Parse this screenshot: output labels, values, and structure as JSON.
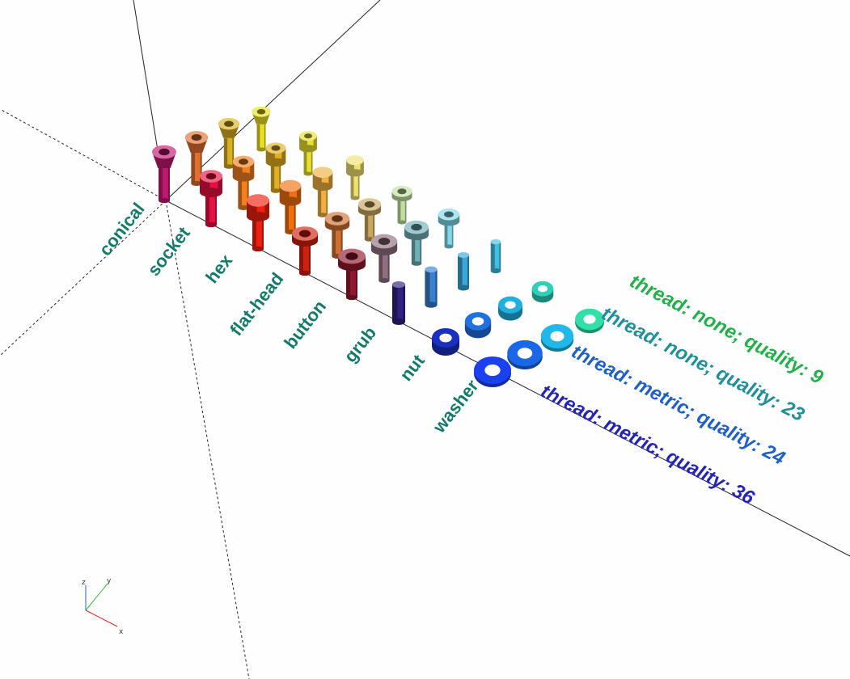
{
  "column_labels": [
    "conical",
    "socket",
    "hex",
    "flat-head",
    "button",
    "grub",
    "nut",
    "washer"
  ],
  "row_labels": [
    "thread: none; quality: 9",
    "thread: none; quality: 23",
    "thread: metric; quality: 24",
    "thread: metric; quality: 36"
  ],
  "row_label_colors": [
    "#22b04a",
    "#1f8f9a",
    "#1f5fc8",
    "#2424b8"
  ],
  "column_label_color": "#157a6a",
  "axis_indicator": {
    "x": "x",
    "y": "y",
    "z": "z"
  },
  "part_colors": [
    [
      "#e8e020",
      "#e8e030",
      "#f0e070",
      "#c0e0a0",
      "#80d8e8",
      "#40c0e0",
      "#30d0b8",
      "#30e0a8"
    ],
    [
      "#d8b020",
      "#e0b020",
      "#f0b040",
      "#c8a860",
      "#70b0b8",
      "#3aa8d8",
      "#20b0e0",
      "#20b8e8"
    ],
    [
      "#e07030",
      "#f08020",
      "#f07010",
      "#d07030",
      "#907080",
      "#3a80d0",
      "#2070e0",
      "#1a68e8"
    ],
    [
      "#c01870",
      "#e81040",
      "#f02010",
      "#d02010",
      "#901830",
      "#302080",
      "#1a30c0",
      "#1a40f0"
    ]
  ]
}
